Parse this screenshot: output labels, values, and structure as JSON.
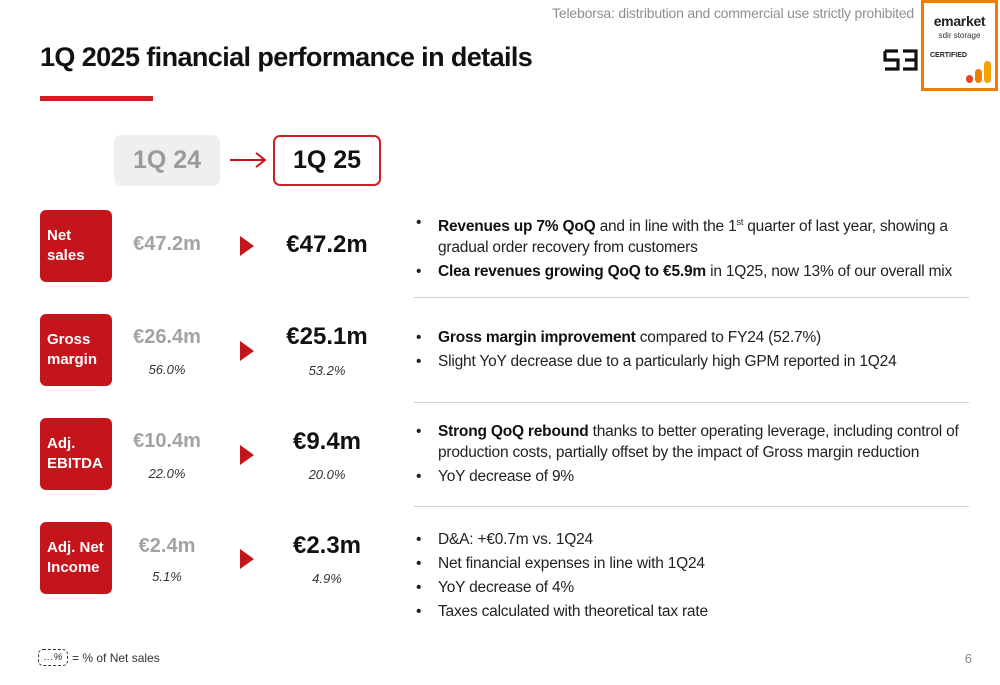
{
  "watermark": "Teleborsa: distribution and commercial use strictly prohibited",
  "title": "1Q 2025 financial performance in details",
  "badge": {
    "line1": "emarket",
    "line2": "sdir storage",
    "line3": "CERTIFIED"
  },
  "brand_color": "#cf2026",
  "badge_color": "#f07d00",
  "periods": {
    "previous": "1Q 24",
    "current": "1Q 25"
  },
  "rows": [
    {
      "label_line1": "Net",
      "label_line2": "sales",
      "prev_value": "€47.2m",
      "curr_value": "€47.2m",
      "bullets": [
        {
          "bold": "Revenues up 7% QoQ",
          "text_before_sup": " and in line with the 1",
          "sup": "st",
          "text": " quarter of last year, showing a gradual order recovery from customers"
        },
        {
          "bold": "Clea revenues growing QoQ to €5.9m",
          "text": " in 1Q25, now 13% of our overall mix"
        }
      ]
    },
    {
      "label_line1": "Gross",
      "label_line2": "margin",
      "prev_value": "€26.4m",
      "prev_pct": "56.0%",
      "curr_value": "€25.1m",
      "curr_pct": "53.2%",
      "bullets": [
        {
          "bold": "Gross margin improvement",
          "text": " compared to FY24 (52.7%)"
        },
        {
          "bold": "",
          "text": "Slight YoY decrease due to a particularly high GPM reported in 1Q24"
        }
      ]
    },
    {
      "label_line1": "Adj.",
      "label_line2": "EBITDA",
      "prev_value": "€10.4m",
      "prev_pct": "22.0%",
      "curr_value": "€9.4m",
      "curr_pct": "20.0%",
      "bullets": [
        {
          "bold": "Strong QoQ rebound",
          "text": " thanks to better operating leverage, including control of production costs, partially offset by the impact of Gross margin reduction"
        },
        {
          "bold": "",
          "text": "YoY decrease of 9%"
        }
      ]
    },
    {
      "label_line1": "Adj. Net",
      "label_line2": "Income",
      "prev_value": "€2.4m",
      "prev_pct": "5.1%",
      "curr_value": "€2.3m",
      "curr_pct": "4.9%",
      "bullets": [
        {
          "bold": "",
          "text": "D&A: +€0.7m vs. 1Q24"
        },
        {
          "bold": "",
          "text": "Net financial expenses in line with 1Q24"
        },
        {
          "bold": "",
          "text": "YoY decrease of 4%"
        },
        {
          "bold": "",
          "text": "Taxes calculated with theoretical tax rate"
        }
      ]
    }
  ],
  "legend": {
    "symbol": "…%",
    "text": "= % of Net sales"
  },
  "page_number": "6"
}
